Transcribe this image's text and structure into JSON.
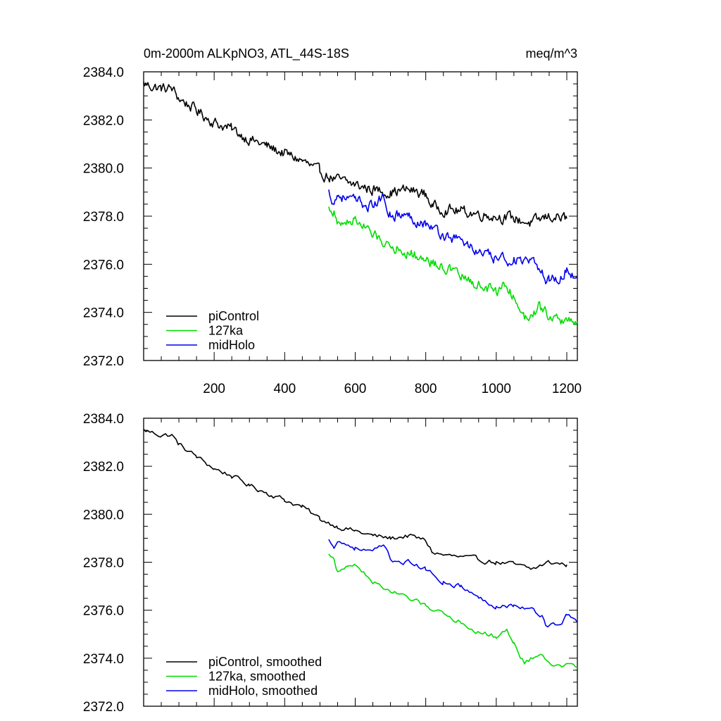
{
  "chart_data": [
    {
      "type": "line",
      "title": "0m-2000m ALKpNO3, ATL_44S-18S",
      "units": "meq/m^3",
      "xlabel": "",
      "ylabel": "",
      "xlim": [
        0,
        1230
      ],
      "ylim": [
        2372.0,
        2384.0
      ],
      "xticks": [
        200,
        400,
        600,
        800,
        1000,
        1200
      ],
      "xtick_labels": [
        "200",
        "400",
        "600",
        "800",
        "1000",
        "1200"
      ],
      "yticks": [
        2372.0,
        2374.0,
        2376.0,
        2378.0,
        2380.0,
        2382.0,
        2384.0
      ],
      "ytick_labels": [
        "2372.0",
        "2374.0",
        "2376.0",
        "2378.0",
        "2380.0",
        "2382.0",
        "2384.0"
      ],
      "legend_position": "bottom-left",
      "series": [
        {
          "name": "piControl",
          "color": "#000000",
          "x": [
            0,
            50,
            80,
            100,
            150,
            200,
            250,
            300,
            350,
            400,
            450,
            500,
            550,
            600,
            650,
            700,
            750,
            800,
            820,
            850,
            900,
            950,
            1000,
            1050,
            1100,
            1150,
            1200
          ],
          "values": [
            2383.5,
            2383.3,
            2383.3,
            2382.9,
            2382.4,
            2381.9,
            2381.6,
            2381.2,
            2380.9,
            2380.6,
            2380.3,
            2379.8,
            2379.5,
            2379.3,
            2379.1,
            2379.0,
            2379.1,
            2378.9,
            2378.4,
            2378.3,
            2378.2,
            2378.1,
            2378.0,
            2377.9,
            2377.7,
            2378.0,
            2377.9
          ]
        },
        {
          "name": "127ka",
          "color": "#00dd00",
          "x": [
            525,
            540,
            550,
            600,
            650,
            700,
            750,
            800,
            850,
            900,
            950,
            1000,
            1030,
            1050,
            1080,
            1120,
            1150,
            1180,
            1200,
            1230
          ],
          "values": [
            2378.3,
            2378.2,
            2377.6,
            2377.9,
            2377.2,
            2376.8,
            2376.5,
            2376.2,
            2375.9,
            2375.5,
            2375.1,
            2374.9,
            2375.2,
            2374.6,
            2373.8,
            2374.2,
            2373.9,
            2373.6,
            2373.7,
            2373.6
          ]
        },
        {
          "name": "midHolo",
          "color": "#0000ee",
          "x": [
            525,
            540,
            550,
            600,
            650,
            680,
            700,
            750,
            800,
            850,
            900,
            950,
            1000,
            1050,
            1100,
            1130,
            1140,
            1150,
            1180,
            1200,
            1230
          ],
          "values": [
            2379.0,
            2378.6,
            2378.9,
            2378.6,
            2378.4,
            2378.8,
            2378.1,
            2378.0,
            2377.7,
            2377.2,
            2377.0,
            2376.5,
            2376.2,
            2376.2,
            2376.0,
            2375.8,
            2375.3,
            2375.4,
            2375.4,
            2375.8,
            2375.4
          ]
        }
      ]
    },
    {
      "type": "line",
      "title": "",
      "xlabel": "",
      "ylabel": "",
      "xlim": [
        0,
        1230
      ],
      "ylim": [
        2372.0,
        2384.0
      ],
      "xticks": [
        200,
        400,
        600,
        800,
        1000,
        1200
      ],
      "yticks": [
        2372.0,
        2374.0,
        2376.0,
        2378.0,
        2380.0,
        2382.0,
        2384.0
      ],
      "ytick_labels": [
        "2372.0",
        "2374.0",
        "2376.0",
        "2378.0",
        "2380.0",
        "2382.0",
        "2384.0"
      ],
      "legend_position": "bottom-left",
      "series": [
        {
          "name": "piControl, smoothed",
          "color": "#000000",
          "x": [
            0,
            50,
            80,
            100,
            150,
            200,
            250,
            300,
            350,
            400,
            450,
            500,
            550,
            600,
            650,
            700,
            750,
            800,
            820,
            850,
            900,
            950,
            1000,
            1050,
            1100,
            1150,
            1200
          ],
          "values": [
            2383.5,
            2383.3,
            2383.3,
            2382.9,
            2382.4,
            2381.9,
            2381.6,
            2381.2,
            2380.9,
            2380.6,
            2380.3,
            2379.8,
            2379.5,
            2379.3,
            2379.1,
            2379.0,
            2379.1,
            2378.9,
            2378.4,
            2378.3,
            2378.2,
            2378.1,
            2378.0,
            2377.9,
            2377.7,
            2378.0,
            2377.9
          ]
        },
        {
          "name": "127ka, smoothed",
          "color": "#00dd00",
          "x": [
            525,
            540,
            550,
            600,
            650,
            700,
            750,
            800,
            850,
            900,
            950,
            1000,
            1030,
            1050,
            1080,
            1120,
            1150,
            1180,
            1200,
            1230
          ],
          "values": [
            2378.3,
            2378.2,
            2377.6,
            2377.9,
            2377.2,
            2376.8,
            2376.5,
            2376.2,
            2375.9,
            2375.5,
            2375.1,
            2374.9,
            2375.2,
            2374.6,
            2373.8,
            2374.2,
            2373.9,
            2373.6,
            2373.7,
            2373.6
          ]
        },
        {
          "name": "midHolo, smoothed",
          "color": "#0000ee",
          "x": [
            525,
            540,
            550,
            600,
            650,
            680,
            700,
            750,
            800,
            850,
            900,
            950,
            1000,
            1050,
            1100,
            1130,
            1140,
            1150,
            1180,
            1200,
            1230
          ],
          "values": [
            2378.9,
            2378.7,
            2378.9,
            2378.6,
            2378.4,
            2378.7,
            2378.1,
            2378.0,
            2377.7,
            2377.2,
            2377.0,
            2376.5,
            2376.2,
            2376.2,
            2376.0,
            2375.8,
            2375.4,
            2375.4,
            2375.4,
            2375.8,
            2375.5
          ]
        }
      ]
    }
  ]
}
